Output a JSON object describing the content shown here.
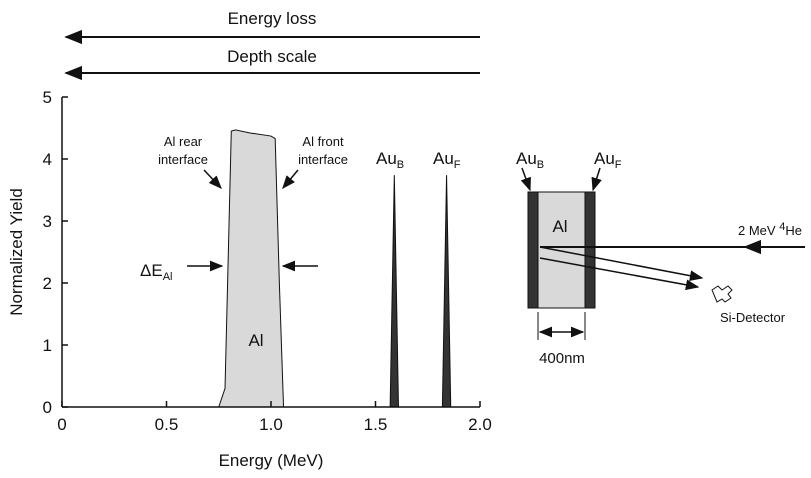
{
  "chart_data": {
    "type": "area",
    "x_label": "Energy (MeV)",
    "y_label": "Normalized Yield",
    "xlim": [
      0,
      2.0
    ],
    "xticks": [
      0,
      0.5,
      {
        "value": 1.0,
        "label": "1.0"
      },
      1.5,
      {
        "value": 2.0,
        "label": "2.0"
      }
    ],
    "ylim": [
      0,
      5
    ],
    "yticks": [
      0,
      1,
      2,
      3,
      4,
      5
    ],
    "series": [
      {
        "color": "#d9d9d9",
        "x": [
          0.75,
          0.78,
          0.81,
          0.83,
          0.9,
          1.0,
          1.02,
          1.04,
          1.06
        ],
        "values": [
          0,
          0.3,
          4.45,
          4.47,
          4.42,
          4.37,
          4.33,
          2.0,
          0
        ]
      },
      {
        "color": "#333333",
        "x": [
          1.57,
          1.59,
          1.61
        ],
        "values": [
          0,
          3.74,
          0
        ]
      },
      {
        "color": "#333333",
        "x": [
          1.82,
          1.84,
          1.86
        ],
        "values": [
          0,
          3.74,
          0
        ]
      }
    ],
    "annotations": {
      "energy_loss": "Energy loss",
      "depth_scale": "Depth scale",
      "rear": [
        "Al rear",
        "interface"
      ],
      "front": [
        "Al front",
        "interface"
      ],
      "delta": {
        "text": "ΔE",
        "sub": "Al"
      },
      "al": "Al",
      "au_b": {
        "text": "Au",
        "sub": "B"
      },
      "au_f": {
        "text": "Au",
        "sub": "F"
      }
    }
  },
  "schematic": {
    "au_b": {
      "text": "Au",
      "sub": "B"
    },
    "au_f": {
      "text": "Au",
      "sub": "F"
    },
    "al": "Al",
    "beam": {
      "text": "2 MeV ",
      "sup": "4",
      "after": "He"
    },
    "detector": "Si-Detector",
    "thickness": "400nm"
  }
}
